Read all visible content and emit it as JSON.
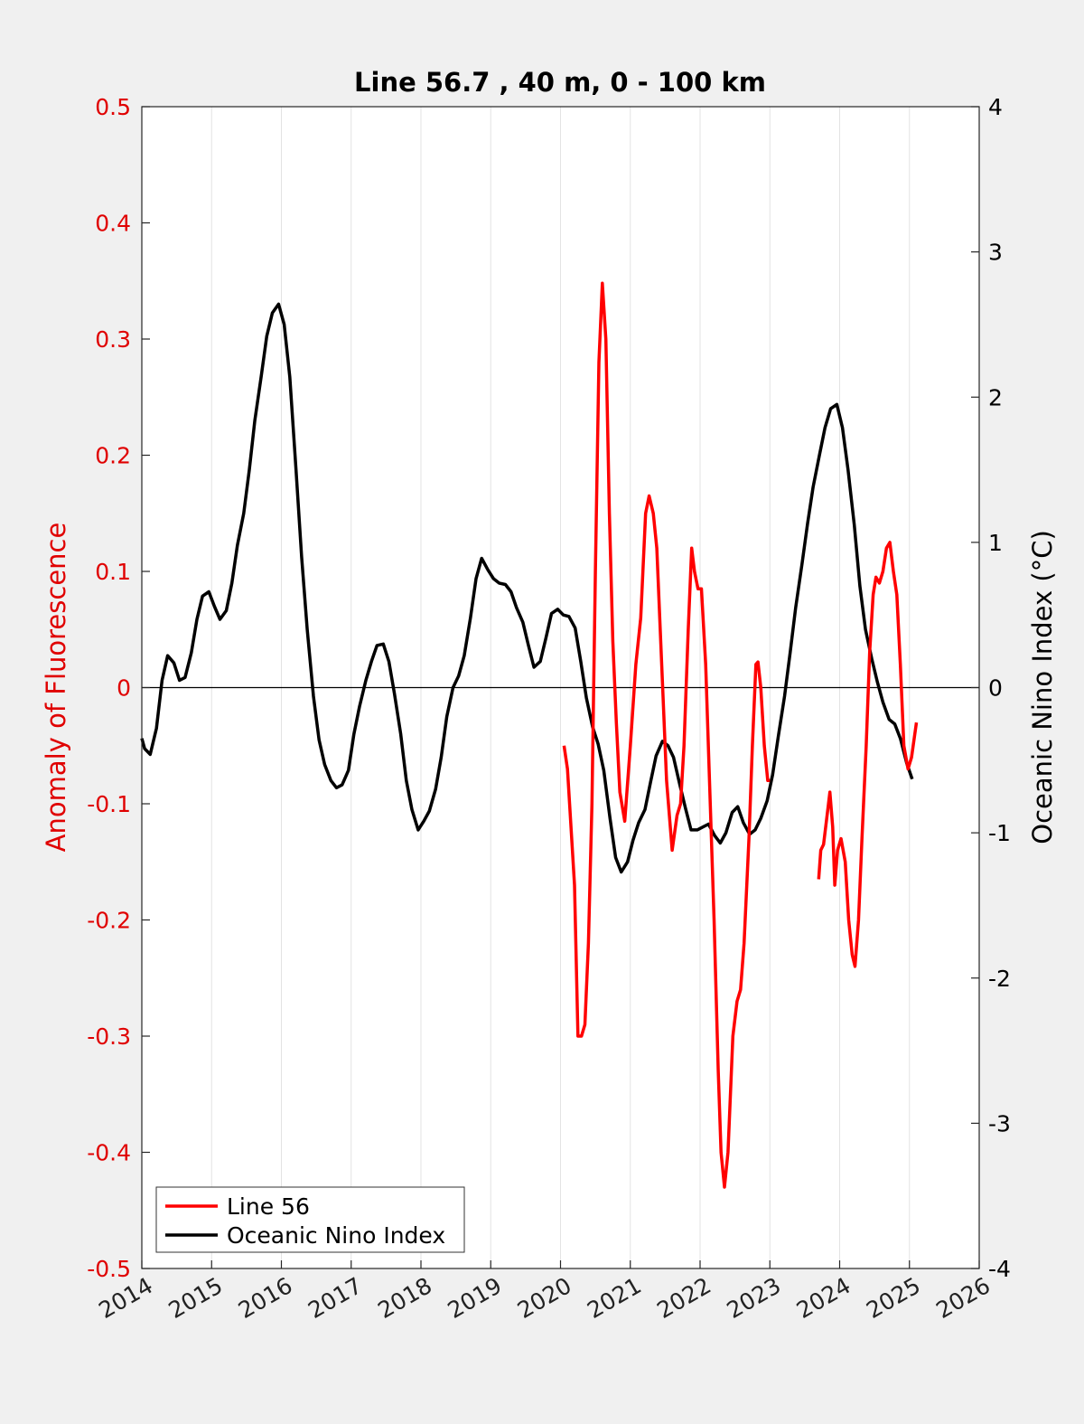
{
  "chart_data": {
    "type": "line",
    "title": "Line 56.7 , 40 m, 0 - 100 km",
    "ylabel_left": "Anomaly of Fluorescence",
    "ylabel_right": "Oceanic Nino Index (°C)",
    "xlim": [
      2014,
      2026
    ],
    "ylim_left": [
      -0.5,
      0.5
    ],
    "ylim_right": [
      -4,
      4
    ],
    "x_ticks": [
      "2014",
      "2015",
      "2016",
      "2017",
      "2018",
      "2019",
      "2020",
      "2021",
      "2022",
      "2023",
      "2024",
      "2025",
      "2026"
    ],
    "y_left_ticks": [
      "0.5",
      "0.4",
      "0.3",
      "0.2",
      "0.1",
      "0",
      "-0.1",
      "-0.2",
      "-0.3",
      "-0.4",
      "-0.5"
    ],
    "y_right_ticks": [
      "4",
      "3",
      "2",
      "1",
      "0",
      "-1",
      "-2",
      "-3",
      "-4"
    ],
    "grid": "vertical",
    "zero_line": true,
    "legend_position": "bottom-left",
    "colors": {
      "line56": "#ff0000",
      "oni": "#000000",
      "left_axis": "#e00000"
    },
    "series": [
      {
        "name": "Line 56",
        "axis": "left",
        "segments": [
          [
            [
              2020.05,
              -0.05
            ],
            [
              2020.1,
              -0.07
            ],
            [
              2020.15,
              -0.12
            ],
            [
              2020.2,
              -0.17
            ],
            [
              2020.25,
              -0.3
            ],
            [
              2020.3,
              -0.3
            ],
            [
              2020.35,
              -0.29
            ],
            [
              2020.4,
              -0.22
            ],
            [
              2020.45,
              -0.1
            ],
            [
              2020.5,
              0.1
            ],
            [
              2020.55,
              0.28
            ],
            [
              2020.6,
              0.348
            ],
            [
              2020.65,
              0.3
            ],
            [
              2020.7,
              0.15
            ],
            [
              2020.75,
              0.04
            ],
            [
              2020.8,
              -0.03
            ],
            [
              2020.85,
              -0.09
            ],
            [
              2020.92,
              -0.115
            ],
            [
              2021.0,
              -0.05
            ],
            [
              2021.08,
              0.02
            ],
            [
              2021.15,
              0.06
            ],
            [
              2021.22,
              0.15
            ],
            [
              2021.27,
              0.165
            ],
            [
              2021.33,
              0.15
            ],
            [
              2021.38,
              0.12
            ],
            [
              2021.45,
              0.02
            ],
            [
              2021.52,
              -0.08
            ],
            [
              2021.6,
              -0.14
            ],
            [
              2021.67,
              -0.11
            ],
            [
              2021.72,
              -0.1
            ],
            [
              2021.77,
              -0.05
            ],
            [
              2021.83,
              0.05
            ],
            [
              2021.88,
              0.12
            ],
            [
              2021.92,
              0.1
            ],
            [
              2021.97,
              0.085
            ],
            [
              2022.02,
              0.085
            ],
            [
              2022.08,
              0.02
            ],
            [
              2022.13,
              -0.07
            ],
            [
              2022.2,
              -0.2
            ],
            [
              2022.26,
              -0.33
            ],
            [
              2022.3,
              -0.4
            ],
            [
              2022.35,
              -0.43
            ],
            [
              2022.4,
              -0.4
            ],
            [
              2022.47,
              -0.3
            ],
            [
              2022.53,
              -0.27
            ],
            [
              2022.58,
              -0.26
            ],
            [
              2022.63,
              -0.22
            ],
            [
              2022.7,
              -0.13
            ],
            [
              2022.75,
              -0.05
            ],
            [
              2022.8,
              0.02
            ],
            [
              2022.83,
              0.022
            ],
            [
              2022.87,
              0.0
            ],
            [
              2022.92,
              -0.05
            ],
            [
              2022.97,
              -0.08
            ],
            [
              2023.0,
              -0.08
            ]
          ],
          [
            [
              2023.7,
              -0.165
            ],
            [
              2023.73,
              -0.14
            ],
            [
              2023.77,
              -0.135
            ],
            [
              2023.82,
              -0.11
            ],
            [
              2023.86,
              -0.09
            ],
            [
              2023.9,
              -0.12
            ],
            [
              2023.93,
              -0.17
            ],
            [
              2023.97,
              -0.14
            ],
            [
              2024.02,
              -0.13
            ],
            [
              2024.08,
              -0.15
            ],
            [
              2024.13,
              -0.2
            ],
            [
              2024.18,
              -0.23
            ],
            [
              2024.22,
              -0.24
            ],
            [
              2024.27,
              -0.2
            ],
            [
              2024.32,
              -0.13
            ],
            [
              2024.38,
              -0.05
            ],
            [
              2024.43,
              0.03
            ],
            [
              2024.48,
              0.08
            ],
            [
              2024.52,
              0.095
            ],
            [
              2024.57,
              0.09
            ],
            [
              2024.62,
              0.1
            ],
            [
              2024.67,
              0.12
            ],
            [
              2024.72,
              0.125
            ],
            [
              2024.77,
              0.1
            ],
            [
              2024.82,
              0.08
            ],
            [
              2024.87,
              0.02
            ],
            [
              2024.92,
              -0.05
            ],
            [
              2024.98,
              -0.07
            ],
            [
              2025.03,
              -0.06
            ],
            [
              2025.1,
              -0.03
            ]
          ]
        ]
      },
      {
        "name": "Oceanic Nino Index",
        "axis": "right",
        "points": [
          [
            2014.0,
            -0.35
          ],
          [
            2014.04,
            -0.42
          ],
          [
            2014.12,
            -0.46
          ],
          [
            2014.21,
            -0.28
          ],
          [
            2014.29,
            0.05
          ],
          [
            2014.37,
            0.22
          ],
          [
            2014.46,
            0.17
          ],
          [
            2014.54,
            0.05
          ],
          [
            2014.62,
            0.07
          ],
          [
            2014.71,
            0.24
          ],
          [
            2014.79,
            0.47
          ],
          [
            2014.87,
            0.63
          ],
          [
            2014.96,
            0.66
          ],
          [
            2015.04,
            0.56
          ],
          [
            2015.12,
            0.47
          ],
          [
            2015.21,
            0.53
          ],
          [
            2015.29,
            0.72
          ],
          [
            2015.37,
            0.98
          ],
          [
            2015.46,
            1.2
          ],
          [
            2015.54,
            1.5
          ],
          [
            2015.62,
            1.84
          ],
          [
            2015.71,
            2.14
          ],
          [
            2015.79,
            2.42
          ],
          [
            2015.87,
            2.58
          ],
          [
            2015.96,
            2.64
          ],
          [
            2016.04,
            2.5
          ],
          [
            2016.12,
            2.14
          ],
          [
            2016.21,
            1.5
          ],
          [
            2016.29,
            0.9
          ],
          [
            2016.37,
            0.4
          ],
          [
            2016.46,
            -0.06
          ],
          [
            2016.54,
            -0.36
          ],
          [
            2016.62,
            -0.53
          ],
          [
            2016.71,
            -0.64
          ],
          [
            2016.79,
            -0.69
          ],
          [
            2016.87,
            -0.67
          ],
          [
            2016.96,
            -0.57
          ],
          [
            2017.04,
            -0.32
          ],
          [
            2017.12,
            -0.13
          ],
          [
            2017.21,
            0.05
          ],
          [
            2017.29,
            0.18
          ],
          [
            2017.37,
            0.29
          ],
          [
            2017.46,
            0.3
          ],
          [
            2017.54,
            0.18
          ],
          [
            2017.62,
            -0.04
          ],
          [
            2017.71,
            -0.32
          ],
          [
            2017.79,
            -0.64
          ],
          [
            2017.87,
            -0.84
          ],
          [
            2017.96,
            -0.98
          ],
          [
            2018.04,
            -0.92
          ],
          [
            2018.12,
            -0.85
          ],
          [
            2018.21,
            -0.7
          ],
          [
            2018.29,
            -0.48
          ],
          [
            2018.37,
            -0.2
          ],
          [
            2018.46,
            0.0
          ],
          [
            2018.54,
            0.08
          ],
          [
            2018.62,
            0.22
          ],
          [
            2018.71,
            0.48
          ],
          [
            2018.79,
            0.75
          ],
          [
            2018.87,
            0.89
          ],
          [
            2018.96,
            0.81
          ],
          [
            2019.04,
            0.75
          ],
          [
            2019.12,
            0.72
          ],
          [
            2019.21,
            0.71
          ],
          [
            2019.29,
            0.66
          ],
          [
            2019.37,
            0.55
          ],
          [
            2019.46,
            0.45
          ],
          [
            2019.54,
            0.29
          ],
          [
            2019.62,
            0.14
          ],
          [
            2019.71,
            0.18
          ],
          [
            2019.79,
            0.34
          ],
          [
            2019.87,
            0.51
          ],
          [
            2019.96,
            0.54
          ],
          [
            2020.04,
            0.5
          ],
          [
            2020.12,
            0.49
          ],
          [
            2020.21,
            0.41
          ],
          [
            2020.29,
            0.18
          ],
          [
            2020.37,
            -0.07
          ],
          [
            2020.46,
            -0.27
          ],
          [
            2020.54,
            -0.39
          ],
          [
            2020.62,
            -0.57
          ],
          [
            2020.71,
            -0.9
          ],
          [
            2020.79,
            -1.17
          ],
          [
            2020.87,
            -1.27
          ],
          [
            2020.96,
            -1.2
          ],
          [
            2021.04,
            -1.05
          ],
          [
            2021.12,
            -0.93
          ],
          [
            2021.21,
            -0.84
          ],
          [
            2021.29,
            -0.65
          ],
          [
            2021.37,
            -0.47
          ],
          [
            2021.46,
            -0.37
          ],
          [
            2021.54,
            -0.4
          ],
          [
            2021.62,
            -0.48
          ],
          [
            2021.71,
            -0.67
          ],
          [
            2021.79,
            -0.83
          ],
          [
            2021.87,
            -0.98
          ],
          [
            2021.96,
            -0.98
          ],
          [
            2022.04,
            -0.96
          ],
          [
            2022.12,
            -0.94
          ],
          [
            2022.21,
            -1.02
          ],
          [
            2022.29,
            -1.07
          ],
          [
            2022.37,
            -1.0
          ],
          [
            2022.46,
            -0.86
          ],
          [
            2022.54,
            -0.82
          ],
          [
            2022.62,
            -0.93
          ],
          [
            2022.71,
            -1.01
          ],
          [
            2022.79,
            -0.98
          ],
          [
            2022.87,
            -0.9
          ],
          [
            2022.96,
            -0.78
          ],
          [
            2023.04,
            -0.6
          ],
          [
            2023.12,
            -0.34
          ],
          [
            2023.21,
            -0.06
          ],
          [
            2023.29,
            0.24
          ],
          [
            2023.37,
            0.55
          ],
          [
            2023.46,
            0.85
          ],
          [
            2023.54,
            1.13
          ],
          [
            2023.62,
            1.38
          ],
          [
            2023.71,
            1.6
          ],
          [
            2023.79,
            1.79
          ],
          [
            2023.87,
            1.92
          ],
          [
            2023.96,
            1.95
          ],
          [
            2024.04,
            1.79
          ],
          [
            2024.12,
            1.5
          ],
          [
            2024.21,
            1.12
          ],
          [
            2024.29,
            0.7
          ],
          [
            2024.37,
            0.4
          ],
          [
            2024.46,
            0.2
          ],
          [
            2024.54,
            0.04
          ],
          [
            2024.62,
            -0.1
          ],
          [
            2024.71,
            -0.22
          ],
          [
            2024.79,
            -0.25
          ],
          [
            2024.87,
            -0.35
          ],
          [
            2024.96,
            -0.52
          ],
          [
            2025.04,
            -0.63
          ]
        ]
      }
    ]
  }
}
